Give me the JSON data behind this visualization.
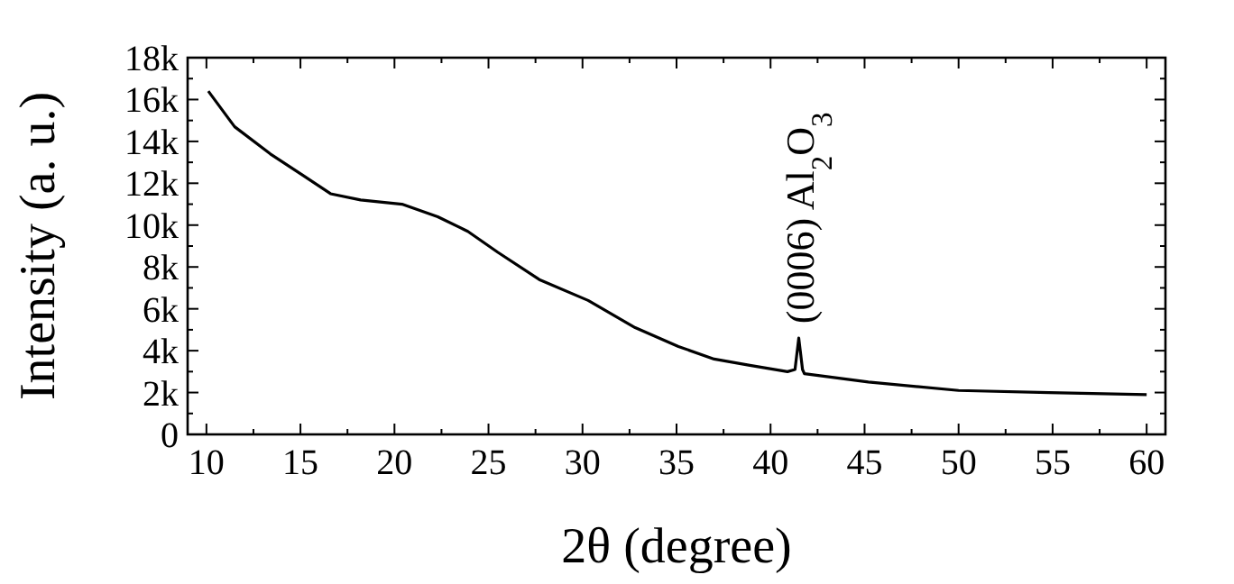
{
  "chart_data": {
    "type": "line",
    "xlabel": "2θ (degree)",
    "ylabel": "Intensity (a. u.)",
    "xlim": [
      9,
      61
    ],
    "ylim": [
      0,
      18000
    ],
    "xticks": [
      10,
      15,
      20,
      25,
      30,
      35,
      40,
      45,
      50,
      55,
      60
    ],
    "yticks": [
      0,
      {
        "value": 2000,
        "label": "2k"
      },
      {
        "value": 4000,
        "label": "4k"
      },
      {
        "value": 6000,
        "label": "6k"
      },
      {
        "value": 8000,
        "label": "8k"
      },
      {
        "value": 10000,
        "label": "10k"
      },
      {
        "value": 12000,
        "label": "12k"
      },
      {
        "value": 14000,
        "label": "14k"
      },
      {
        "value": 16000,
        "label": "16k"
      },
      {
        "value": 18000,
        "label": "18k"
      }
    ],
    "grid": false,
    "marker": "none",
    "line_style": "solid",
    "annotations": [
      {
        "text": "(0006) Al$_{2}$O$_{3}$",
        "x": 41.5,
        "y": 4600
      }
    ],
    "series": [
      {
        "color": "#000000",
        "x": [
          10.1,
          11.5,
          13.4,
          15.1,
          16.6,
          18.2,
          20.4,
          22.3,
          23.9,
          25.5,
          27.7,
          30.3,
          32.8,
          35.1,
          37.0,
          38.9,
          40.9,
          41.3,
          41.5,
          41.7,
          41.8,
          45.2,
          50.0,
          54.8,
          60
        ],
        "values": [
          16400,
          14700,
          13400,
          12400,
          11500,
          11200,
          11000,
          10400,
          9700,
          8700,
          7400,
          6400,
          5100,
          4200,
          3600,
          3300,
          3000,
          3100,
          4600,
          3100,
          2900,
          2500,
          2100,
          2000,
          1900
        ]
      }
    ]
  }
}
